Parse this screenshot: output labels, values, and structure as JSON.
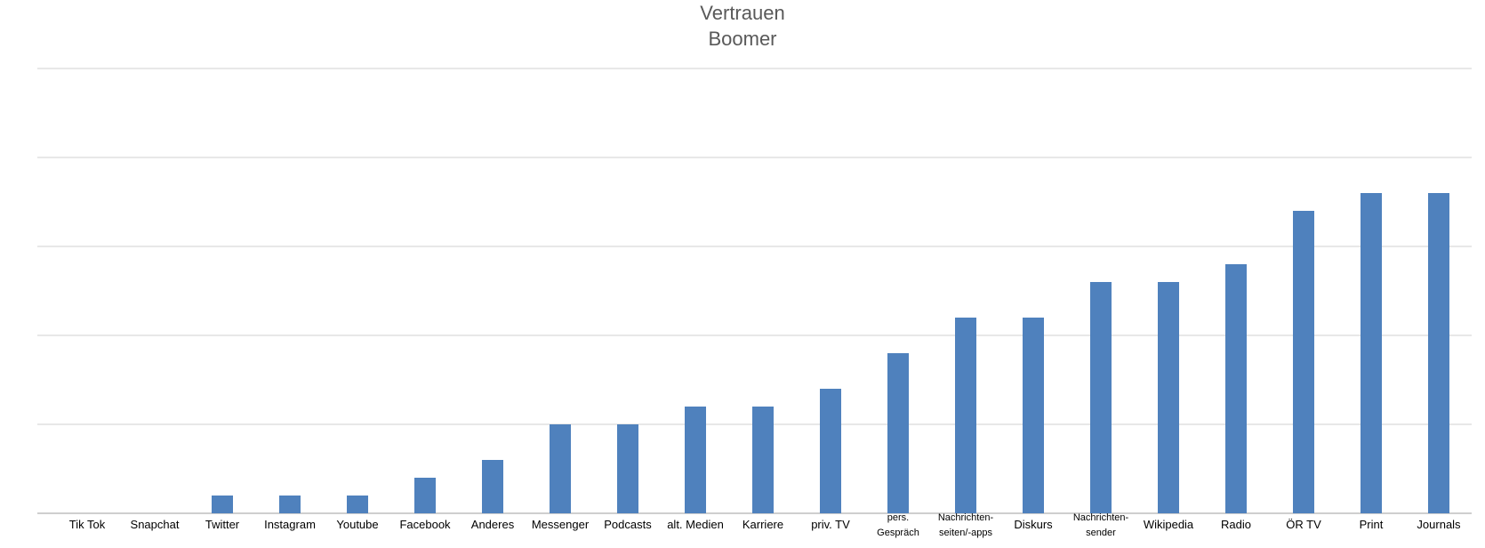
{
  "chart_data": {
    "type": "bar",
    "title": "Vertrauen",
    "subtitle": "Boomer",
    "xlabel": "",
    "ylabel": "",
    "ylim": [
      0,
      25
    ],
    "grid": true,
    "legend": "none",
    "bar_color": "#4F81BD",
    "categories": [
      [
        "Tik Tok"
      ],
      [
        "Snapchat"
      ],
      [
        "Twitter"
      ],
      [
        "Instagram"
      ],
      [
        "Youtube"
      ],
      [
        "Facebook"
      ],
      [
        "Anderes"
      ],
      [
        "Messenger"
      ],
      [
        "Podcasts"
      ],
      [
        "alt. Medien"
      ],
      [
        "Karriere"
      ],
      [
        "priv. TV"
      ],
      [
        "pers.",
        "Gespräch"
      ],
      [
        "Nachrichten-",
        "seiten/-apps"
      ],
      [
        "Diskurs"
      ],
      [
        "Nachrichten-",
        "sender"
      ],
      [
        "Wikipedia"
      ],
      [
        "Radio"
      ],
      [
        "ÖR TV"
      ],
      [
        "Print"
      ],
      [
        "Journals"
      ]
    ],
    "values": [
      0,
      0,
      1,
      1,
      1,
      2,
      3,
      5,
      5,
      6,
      6,
      7,
      9,
      11,
      11,
      13,
      13,
      14,
      17,
      18,
      18
    ]
  }
}
